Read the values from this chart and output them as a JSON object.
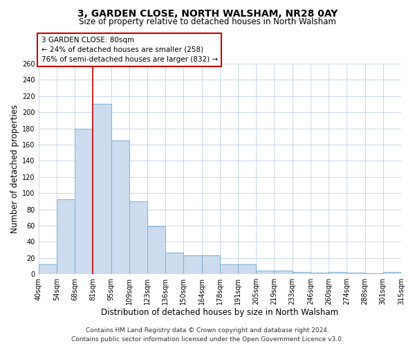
{
  "title": "3, GARDEN CLOSE, NORTH WALSHAM, NR28 0AY",
  "subtitle": "Size of property relative to detached houses in North Walsham",
  "xlabel": "Distribution of detached houses by size in North Walsham",
  "ylabel": "Number of detached properties",
  "bin_labels": [
    "40sqm",
    "54sqm",
    "68sqm",
    "81sqm",
    "95sqm",
    "109sqm",
    "123sqm",
    "136sqm",
    "150sqm",
    "164sqm",
    "178sqm",
    "191sqm",
    "205sqm",
    "219sqm",
    "233sqm",
    "246sqm",
    "260sqm",
    "274sqm",
    "288sqm",
    "301sqm",
    "315sqm"
  ],
  "bar_values": [
    12,
    92,
    180,
    210,
    165,
    90,
    59,
    27,
    23,
    23,
    12,
    12,
    4,
    4,
    3,
    2,
    3,
    2,
    1,
    3
  ],
  "bar_fill_color": "#ccdcee",
  "bar_edge_color": "#7bafd4",
  "grid_color": "#c8d8ea",
  "bg_color": "#ffffff",
  "vline_color": "#cc0000",
  "vline_x_index": 3,
  "annotation_text": "3 GARDEN CLOSE: 80sqm\n← 24% of detached houses are smaller (258)\n76% of semi-detached houses are larger (832) →",
  "annot_box_edge_color": "#cc0000",
  "annot_box_fill_color": "#ffffff",
  "ylim": [
    0,
    260
  ],
  "yticks": [
    0,
    20,
    40,
    60,
    80,
    100,
    120,
    140,
    160,
    180,
    200,
    220,
    240,
    260
  ],
  "title_fontsize": 10,
  "subtitle_fontsize": 8.5,
  "axis_label_fontsize": 8.5,
  "tick_fontsize": 7,
  "annot_fontsize": 7.5,
  "footer_fontsize": 6.5,
  "footer_text": "Contains HM Land Registry data © Crown copyright and database right 2024.\nContains public sector information licensed under the Open Government Licence v3.0."
}
